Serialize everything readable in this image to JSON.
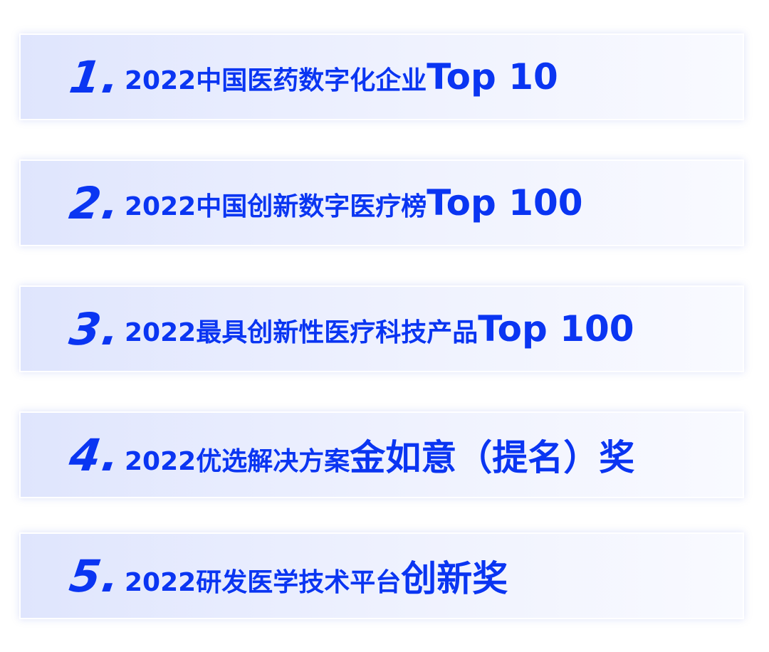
{
  "accent_color": "#0a35f2",
  "awards": [
    {
      "number": "1.",
      "text": "2022中国医药数字化企业",
      "emphasis": "Top 10"
    },
    {
      "number": "2.",
      "text": "2022中国创新数字医疗榜",
      "emphasis": "Top 100"
    },
    {
      "number": "3.",
      "text": "2022最具创新性医疗科技产品",
      "emphasis": "Top 100"
    },
    {
      "number": "4.",
      "text": "2022优选解决方案",
      "emphasis": "金如意（提名）奖"
    },
    {
      "number": "5.",
      "text": "2022研发医学技术平台",
      "emphasis": "创新奖"
    }
  ]
}
